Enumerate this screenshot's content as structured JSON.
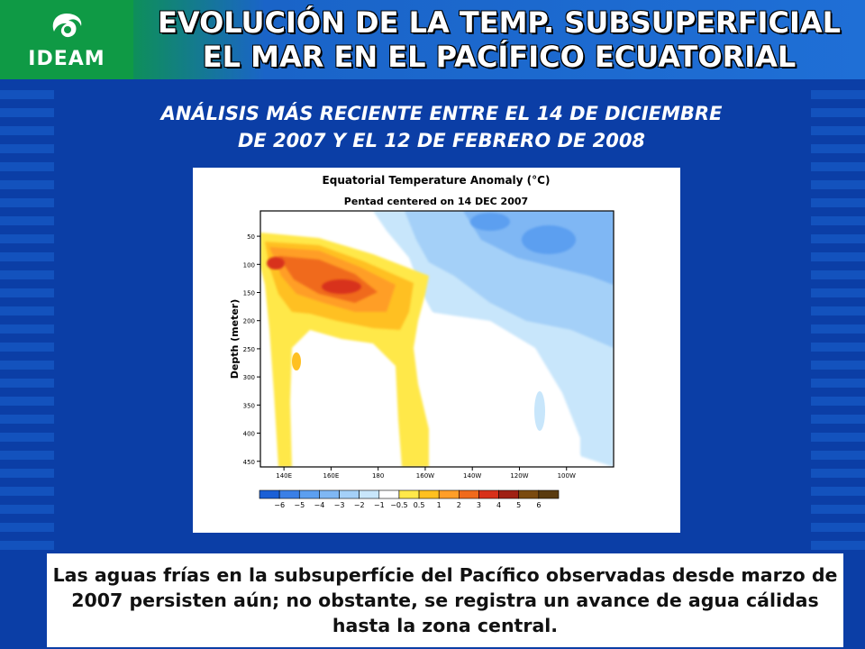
{
  "logo": {
    "text": "IDEAM"
  },
  "header": {
    "title_line1": "EVOLUCIÓN DE LA TEMP. SUBSUPERFICIAL",
    "title_line2": "EL MAR EN EL PACÍFICO ECUATORIAL",
    "subtitle_line1": "ANÁLISIS MÁS RECIENTE ENTRE EL 14 DE DICIEMBRE",
    "subtitle_line2": "DE 2007 Y EL 12 DE FEBRERO DE 2008"
  },
  "caption": "Las aguas frías en la subsuperfície del Pacífico observadas desde marzo de 2007 persisten aún; no obstante, se registra un avance de agua cálidas hasta la zona central.",
  "colors": {
    "background": "#0b3ea6",
    "logo_green": "#0f9a45",
    "title": "#ffffff"
  },
  "chart_data": {
    "type": "heatmap",
    "title": "Equatorial Temperature Anomaly (°C)",
    "subtitle": "Pentad centered on 14 DEC 2007",
    "ylabel": "Depth (meter)",
    "xlabel": "",
    "x_ticks": [
      "140E",
      "160E",
      "180",
      "160W",
      "140W",
      "120W",
      "100W"
    ],
    "x_range": [
      130,
      280
    ],
    "y_ticks": [
      50,
      100,
      150,
      200,
      250,
      300,
      350,
      400,
      450
    ],
    "y_range": [
      5,
      460
    ],
    "y_inverted": true,
    "colorbar": {
      "labels": [
        "−6",
        "−5",
        "−4",
        "−3",
        "−2",
        "−1",
        "−0.5",
        "0.5",
        "1",
        "2",
        "3",
        "4",
        "5",
        "6"
      ],
      "bins": [
        {
          "color": "#1a5fd6"
        },
        {
          "color": "#3a7fe6"
        },
        {
          "color": "#5c9ff0"
        },
        {
          "color": "#7fb7f4"
        },
        {
          "color": "#a4d0f8"
        },
        {
          "color": "#c8e6fb"
        },
        {
          "color": "#ffffff"
        },
        {
          "color": "#ffe84a"
        },
        {
          "color": "#ffc020"
        },
        {
          "color": "#ff9e28"
        },
        {
          "color": "#f06a1c"
        },
        {
          "color": "#d8301a"
        },
        {
          "color": "#a02014"
        },
        {
          "color": "#7a4a10"
        },
        {
          "color": "#5a3b10"
        }
      ]
    },
    "features": [
      {
        "name": "warm core",
        "lon": [
          150,
          185
        ],
        "depth": [
          50,
          230
        ],
        "anomaly_max": 4
      },
      {
        "name": "warm tongue to central Pacific",
        "lon": [
          185,
          205
        ],
        "depth": [
          150,
          460
        ],
        "anomaly_max": 1
      },
      {
        "name": "cold anomaly east",
        "lon": [
          200,
          280
        ],
        "depth": [
          5,
          200
        ],
        "anomaly_min": -3
      }
    ]
  }
}
